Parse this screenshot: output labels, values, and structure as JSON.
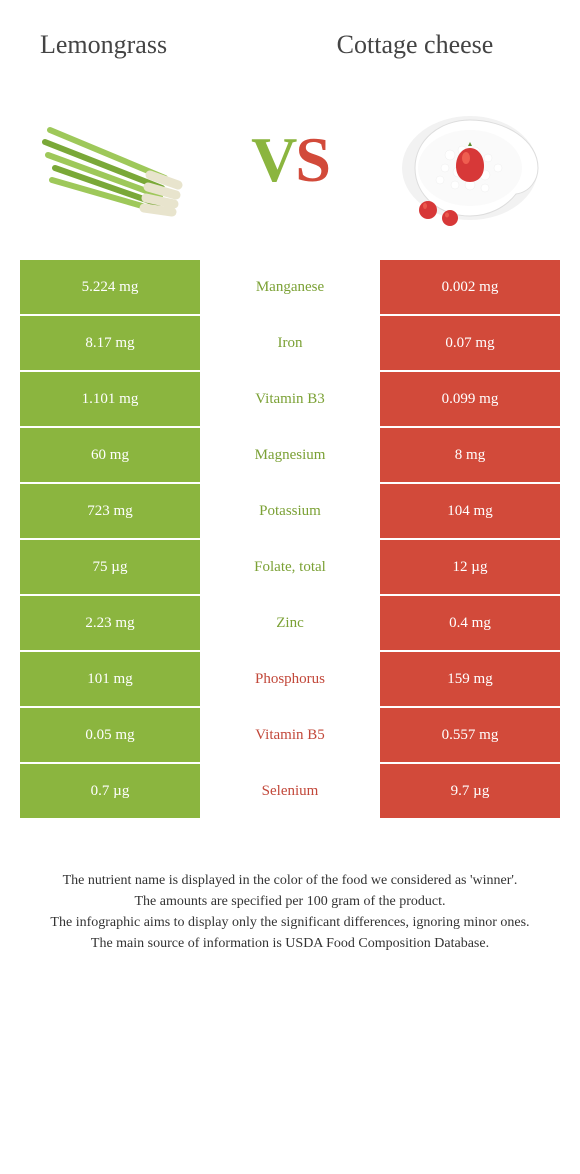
{
  "header": {
    "left_title": "Lemongrass",
    "right_title": "Cottage cheese"
  },
  "vs": {
    "v": "V",
    "s": "S"
  },
  "colors": {
    "green": "#8bb53f",
    "red": "#d24a3a",
    "txt_green": "#7ba135",
    "txt_red": "#c2483a"
  },
  "rows": [
    {
      "nutrient": "Manganese",
      "left": "5.224 mg",
      "right": "0.002 mg",
      "winner": "left"
    },
    {
      "nutrient": "Iron",
      "left": "8.17 mg",
      "right": "0.07 mg",
      "winner": "left"
    },
    {
      "nutrient": "Vitamin B3",
      "left": "1.101 mg",
      "right": "0.099 mg",
      "winner": "left"
    },
    {
      "nutrient": "Magnesium",
      "left": "60 mg",
      "right": "8 mg",
      "winner": "left"
    },
    {
      "nutrient": "Potassium",
      "left": "723 mg",
      "right": "104 mg",
      "winner": "left"
    },
    {
      "nutrient": "Folate, total",
      "left": "75 µg",
      "right": "12 µg",
      "winner": "left"
    },
    {
      "nutrient": "Zinc",
      "left": "2.23 mg",
      "right": "0.4 mg",
      "winner": "left"
    },
    {
      "nutrient": "Phosphorus",
      "left": "101 mg",
      "right": "159 mg",
      "winner": "right"
    },
    {
      "nutrient": "Vitamin B5",
      "left": "0.05 mg",
      "right": "0.557 mg",
      "winner": "right"
    },
    {
      "nutrient": "Selenium",
      "left": "0.7 µg",
      "right": "9.7 µg",
      "winner": "right"
    }
  ],
  "footer": {
    "line1": "The nutrient name is displayed in the color of the food we considered as 'winner'.",
    "line2": "The amounts are specified per 100 gram of the product.",
    "line3": "The infographic aims to display only the significant differences, ignoring minor ones.",
    "line4": "The main source of information is USDA Food Composition Database."
  }
}
